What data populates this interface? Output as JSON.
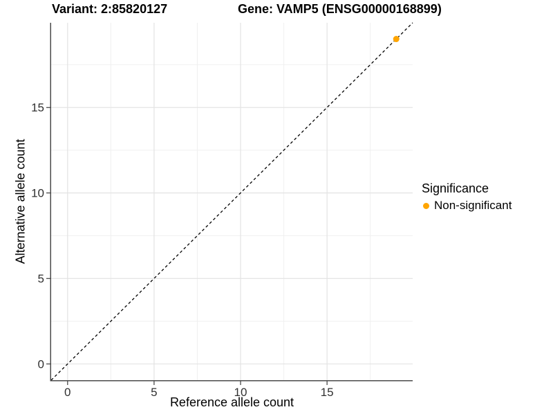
{
  "header": {
    "variant_title": "Variant: 2:85820127",
    "gene_title": "Gene: VAMP5 (ENSG00000168899)"
  },
  "axes": {
    "x_label": "Reference allele count",
    "y_label": "Alternative allele count"
  },
  "legend": {
    "title": "Significance",
    "items": [
      {
        "label": "Non-significant",
        "color": "#FFA500"
      }
    ]
  },
  "chart_data": {
    "type": "scatter",
    "title": "Variant: 2:85820127   Gene: VAMP5 (ENSG00000168899)",
    "xlabel": "Reference allele count",
    "ylabel": "Alternative allele count",
    "xlim": [
      -0.95,
      19.95
    ],
    "ylim": [
      -0.95,
      19.95
    ],
    "x_ticks": [
      0,
      5,
      10,
      15
    ],
    "y_ticks": [
      0,
      5,
      10,
      15
    ],
    "x_minor_ticks": [
      2.5,
      7.5,
      12.5,
      17.5
    ],
    "y_minor_ticks": [
      2.5,
      7.5,
      12.5,
      17.5
    ],
    "grid": true,
    "legend_position": "right",
    "identity_line": {
      "style": "dashed",
      "color": "#000000",
      "slope": 1,
      "intercept": 0
    },
    "series": [
      {
        "name": "Non-significant",
        "color": "#FFA500",
        "points": [
          {
            "x": 19,
            "y": 19
          }
        ]
      }
    ],
    "style": {
      "grid_major_color": "#e3e3e3",
      "grid_minor_color": "#f0f0f0",
      "axis_line_color": "#4a4a4a",
      "tick_label_color": "#303030",
      "background": "#ffffff"
    }
  }
}
